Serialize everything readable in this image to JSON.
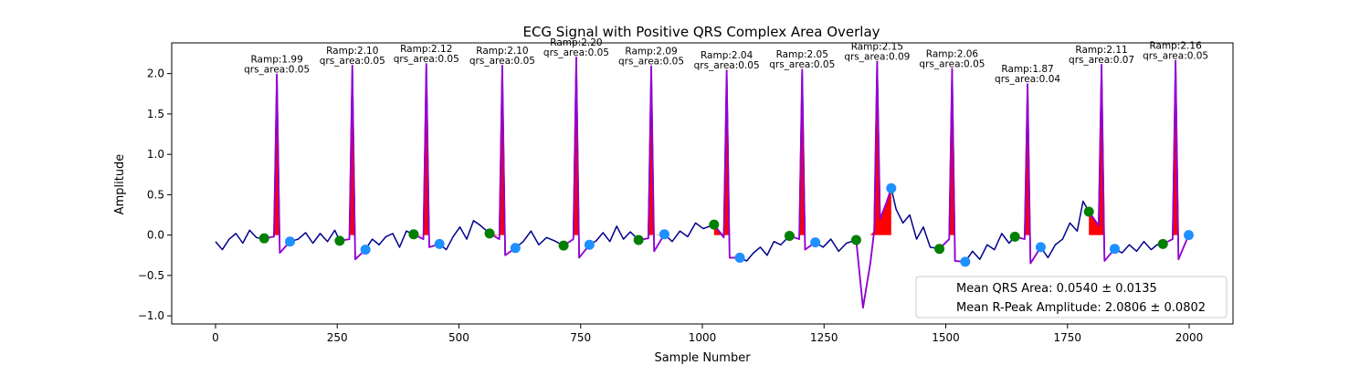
{
  "chart_data": {
    "type": "line",
    "title": "ECG Signal with Positive QRS Complex Area Overlay",
    "xlabel": "Sample Number",
    "ylabel": "Amplitude",
    "xlim": [
      -90,
      2090
    ],
    "ylim": [
      -1.1,
      2.38
    ],
    "xticks": [
      0,
      250,
      500,
      750,
      1000,
      1250,
      1500,
      1750,
      2000
    ],
    "xtick_labels": [
      "0",
      "250",
      "500",
      "750",
      "1000",
      "1250",
      "1500",
      "1750",
      "2000"
    ],
    "yticks": [
      -1.0,
      -0.5,
      0.0,
      0.5,
      1.0,
      1.5,
      2.0
    ],
    "ytick_labels": [
      "−1.0",
      "−0.5",
      "0.0",
      "0.5",
      "1.0",
      "1.5",
      "2.0"
    ],
    "grid": false,
    "colors": {
      "signal": "#00008b",
      "qrs_segment": "#9400d3",
      "qrs_area": "#ff0000",
      "onset_marker": "#008000",
      "offset_marker": "#1e90ff"
    },
    "beats": [
      {
        "r_x": 126,
        "r_amp": 1.99,
        "qrs_area": 0.05,
        "onset": [
          100,
          -0.04
        ],
        "offset": [
          153,
          -0.08
        ],
        "amp_label": "Ramp:1.99",
        "area_label": "qrs_area:0.05"
      },
      {
        "r_x": 281,
        "r_amp": 2.1,
        "qrs_area": 0.05,
        "onset": [
          255,
          -0.07
        ],
        "offset": [
          308,
          -0.18
        ],
        "amp_label": "Ramp:2.10",
        "area_label": "qrs_area:0.05"
      },
      {
        "r_x": 433,
        "r_amp": 2.12,
        "qrs_area": 0.05,
        "onset": [
          407,
          0.01
        ],
        "offset": [
          460,
          -0.11
        ],
        "amp_label": "Ramp:2.12",
        "area_label": "qrs_area:0.05"
      },
      {
        "r_x": 589,
        "r_amp": 2.1,
        "qrs_area": 0.05,
        "onset": [
          563,
          0.02
        ],
        "offset": [
          616,
          -0.16
        ],
        "amp_label": "Ramp:2.10",
        "area_label": "qrs_area:0.05"
      },
      {
        "r_x": 741,
        "r_amp": 2.2,
        "qrs_area": 0.05,
        "onset": [
          715,
          -0.13
        ],
        "offset": [
          768,
          -0.12
        ],
        "amp_label": "Ramp:2.20",
        "area_label": "qrs_area:0.05"
      },
      {
        "r_x": 895,
        "r_amp": 2.09,
        "qrs_area": 0.05,
        "onset": [
          869,
          -0.06
        ],
        "offset": [
          922,
          0.01
        ],
        "amp_label": "Ramp:2.09",
        "area_label": "qrs_area:0.05"
      },
      {
        "r_x": 1050,
        "r_amp": 2.04,
        "qrs_area": 0.05,
        "onset": [
          1024,
          0.13
        ],
        "offset": [
          1077,
          -0.28
        ],
        "amp_label": "Ramp:2.04",
        "area_label": "qrs_area:0.05"
      },
      {
        "r_x": 1205,
        "r_amp": 2.05,
        "qrs_area": 0.05,
        "onset": [
          1179,
          -0.01
        ],
        "offset": [
          1232,
          -0.09
        ],
        "amp_label": "Ramp:2.05",
        "area_label": "qrs_area:0.05"
      },
      {
        "r_x": 1359,
        "r_amp": 2.15,
        "qrs_area": 0.09,
        "onset": [
          1316,
          -0.06
        ],
        "offset": [
          1388,
          0.58
        ],
        "amp_label": "Ramp:2.15",
        "area_label": "qrs_area:0.09"
      },
      {
        "r_x": 1513,
        "r_amp": 2.06,
        "qrs_area": 0.05,
        "onset": [
          1487,
          -0.17
        ],
        "offset": [
          1540,
          -0.33
        ],
        "amp_label": "Ramp:2.06",
        "area_label": "qrs_area:0.05"
      },
      {
        "r_x": 1668,
        "r_amp": 1.87,
        "qrs_area": 0.04,
        "onset": [
          1642,
          -0.02
        ],
        "offset": [
          1695,
          -0.15
        ],
        "amp_label": "Ramp:1.87",
        "area_label": "qrs_area:0.04"
      },
      {
        "r_x": 1820,
        "r_amp": 2.11,
        "qrs_area": 0.07,
        "onset": [
          1794,
          0.29
        ],
        "offset": [
          1847,
          -0.17
        ],
        "amp_label": "Ramp:2.11",
        "area_label": "qrs_area:0.07"
      },
      {
        "r_x": 1972,
        "r_amp": 2.16,
        "qrs_area": 0.05,
        "onset": [
          1946,
          -0.11
        ],
        "offset": [
          1999,
          0.0
        ],
        "amp_label": "Ramp:2.16",
        "area_label": "qrs_area:0.05"
      }
    ],
    "signal": {
      "x": [
        0,
        14,
        28,
        42,
        56,
        70,
        84,
        98,
        100,
        120,
        126,
        132,
        153,
        170,
        185,
        200,
        215,
        230,
        245,
        255,
        275,
        281,
        287,
        308,
        322,
        336,
        350,
        364,
        378,
        392,
        407,
        427,
        433,
        439,
        460,
        474,
        488,
        502,
        516,
        530,
        544,
        563,
        583,
        589,
        595,
        616,
        632,
        648,
        664,
        680,
        696,
        715,
        735,
        741,
        747,
        768,
        782,
        796,
        810,
        824,
        838,
        852,
        869,
        889,
        895,
        901,
        922,
        938,
        954,
        970,
        986,
        1002,
        1024,
        1044,
        1050,
        1056,
        1077,
        1091,
        1105,
        1119,
        1133,
        1147,
        1161,
        1179,
        1199,
        1205,
        1211,
        1232,
        1248,
        1264,
        1280,
        1296,
        1316,
        1330,
        1345,
        1353,
        1359,
        1365,
        1378,
        1388,
        1398,
        1412,
        1426,
        1440,
        1454,
        1468,
        1487,
        1507,
        1513,
        1519,
        1540,
        1555,
        1570,
        1585,
        1600,
        1615,
        1630,
        1642,
        1662,
        1668,
        1674,
        1695,
        1710,
        1725,
        1740,
        1755,
        1770,
        1782,
        1794,
        1814,
        1820,
        1826,
        1847,
        1862,
        1877,
        1892,
        1907,
        1922,
        1934,
        1946,
        1966,
        1972,
        1978,
        1999,
        2000
      ],
      "y": [
        -0.08,
        -0.18,
        -0.05,
        0.02,
        -0.1,
        0.06,
        -0.03,
        -0.05,
        -0.04,
        -0.02,
        1.99,
        -0.22,
        -0.08,
        -0.05,
        0.03,
        -0.1,
        0.02,
        -0.08,
        0.06,
        -0.07,
        -0.05,
        2.1,
        -0.3,
        -0.18,
        -0.05,
        -0.12,
        -0.02,
        0.02,
        -0.15,
        0.05,
        0.01,
        -0.05,
        2.12,
        -0.15,
        -0.11,
        -0.18,
        -0.02,
        0.1,
        -0.05,
        0.18,
        0.12,
        0.02,
        -0.05,
        2.1,
        -0.25,
        -0.16,
        -0.08,
        0.05,
        -0.12,
        -0.03,
        -0.07,
        -0.13,
        -0.05,
        2.2,
        -0.28,
        -0.12,
        -0.07,
        0.03,
        -0.08,
        0.11,
        -0.05,
        0.04,
        -0.06,
        -0.04,
        2.09,
        -0.2,
        0.01,
        -0.08,
        0.05,
        -0.02,
        0.15,
        0.08,
        0.13,
        -0.03,
        2.04,
        -0.28,
        -0.28,
        -0.32,
        -0.22,
        -0.15,
        -0.25,
        -0.08,
        -0.12,
        -0.01,
        -0.05,
        2.05,
        -0.18,
        -0.09,
        -0.15,
        -0.05,
        -0.2,
        -0.1,
        -0.06,
        -0.9,
        -0.35,
        0.05,
        2.15,
        0.2,
        0.4,
        0.58,
        0.32,
        0.15,
        0.25,
        -0.05,
        0.1,
        -0.15,
        -0.17,
        -0.05,
        2.06,
        -0.32,
        -0.33,
        -0.2,
        -0.3,
        -0.12,
        -0.18,
        0.02,
        -0.1,
        -0.02,
        -0.05,
        1.87,
        -0.35,
        -0.15,
        -0.28,
        -0.12,
        -0.05,
        0.15,
        0.05,
        0.42,
        0.29,
        0.12,
        2.11,
        -0.32,
        -0.17,
        -0.22,
        -0.12,
        -0.2,
        -0.08,
        -0.18,
        -0.12,
        -0.11,
        -0.05,
        2.16,
        -0.3,
        0.0,
        0.0
      ]
    },
    "legend": {
      "placement": "lower-right",
      "entries": [
        {
          "label": "Mean QRS Area: 0.0540 ± 0.0135"
        },
        {
          "label": "Mean R-Peak Amplitude: 2.0806 ± 0.0802"
        }
      ]
    }
  }
}
